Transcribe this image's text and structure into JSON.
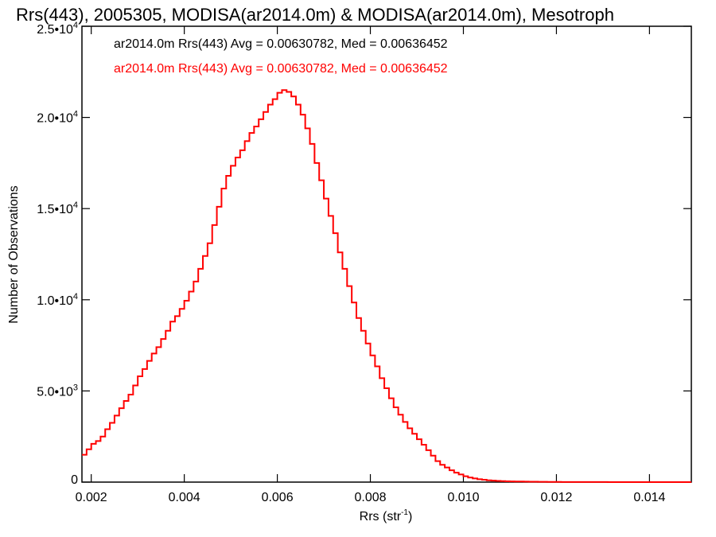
{
  "chart_data": {
    "type": "step-histogram",
    "title": "Rrs(443), 2005305, MODISA(ar2014.0m) & MODISA(ar2014.0m), Mesotroph",
    "xlabel": "Rrs (str",
    "xlabel_sup": "-1",
    "xlabel_suffix": ")",
    "ylabel": "Number of Observations",
    "xlim": [
      0.0018,
      0.0149
    ],
    "ylim": [
      0,
      25000
    ],
    "x_ticks": [
      0.002,
      0.004,
      0.006,
      0.008,
      0.01,
      0.012,
      0.014
    ],
    "x_tick_labels": [
      "0.002",
      "0.004",
      "0.006",
      "0.008",
      "0.010",
      "0.012",
      "0.014"
    ],
    "y_ticks": [
      {
        "value": 0,
        "mantissa": "0",
        "exp": ""
      },
      {
        "value": 5000,
        "mantissa": "5.0•10",
        "exp": "3"
      },
      {
        "value": 10000,
        "mantissa": "1.0•10",
        "exp": "4"
      },
      {
        "value": 15000,
        "mantissa": "1.5•10",
        "exp": "4"
      },
      {
        "value": 20000,
        "mantissa": "2.0•10",
        "exp": "4"
      },
      {
        "value": 25000,
        "mantissa": "2.5•10",
        "exp": "4"
      }
    ],
    "legend": [
      {
        "text": "ar2014.0m Rrs(443) Avg = 0.00630782, Med = 0.00636452",
        "color": "#000000"
      },
      {
        "text": "ar2014.0m Rrs(443) Avg = 0.00630782, Med = 0.00636452",
        "color": "#ff0000"
      }
    ],
    "legend_position": "top-left",
    "series": [
      {
        "color": "#ff0000",
        "x": [
          0.0018,
          0.0019,
          0.002,
          0.0021,
          0.0022,
          0.0023,
          0.0024,
          0.0025,
          0.0026,
          0.0027,
          0.0028,
          0.0029,
          0.003,
          0.0031,
          0.0032,
          0.0033,
          0.0034,
          0.0035,
          0.0036,
          0.0037,
          0.0038,
          0.0039,
          0.004,
          0.0041,
          0.0042,
          0.0043,
          0.0044,
          0.0045,
          0.0046,
          0.0047,
          0.0048,
          0.0049,
          0.005,
          0.0051,
          0.0052,
          0.0053,
          0.0054,
          0.0055,
          0.0056,
          0.0057,
          0.0058,
          0.0059,
          0.006,
          0.0061,
          0.0062,
          0.0063,
          0.0064,
          0.0065,
          0.0066,
          0.0067,
          0.0068,
          0.0069,
          0.007,
          0.0071,
          0.0072,
          0.0073,
          0.0074,
          0.0075,
          0.0076,
          0.0077,
          0.0078,
          0.0079,
          0.008,
          0.0081,
          0.0082,
          0.0083,
          0.0084,
          0.0085,
          0.0086,
          0.0087,
          0.0088,
          0.0089,
          0.009,
          0.0091,
          0.0092,
          0.0093,
          0.0094,
          0.0095,
          0.0096,
          0.0097,
          0.0098,
          0.0099,
          0.01,
          0.0101,
          0.0102,
          0.0103,
          0.0104,
          0.0105,
          0.0106,
          0.0107,
          0.0108,
          0.0109,
          0.011,
          0.0111,
          0.0112,
          0.0113,
          0.0114,
          0.0115,
          0.0116,
          0.0117,
          0.0118,
          0.0119,
          0.012,
          0.0121,
          0.0122,
          0.0123,
          0.0124,
          0.0125,
          0.0126,
          0.0127,
          0.0128,
          0.0129,
          0.013,
          0.0131,
          0.0132,
          0.0133,
          0.0134,
          0.0135,
          0.0136,
          0.0137,
          0.0138,
          0.0139,
          0.014,
          0.0141,
          0.0142,
          0.0143,
          0.0144,
          0.0145,
          0.0146,
          0.0147,
          0.0148
        ],
        "values": [
          1500,
          1800,
          2100,
          2250,
          2500,
          2900,
          3250,
          3650,
          4050,
          4450,
          4800,
          5300,
          5800,
          6200,
          6650,
          7050,
          7400,
          7850,
          8300,
          8800,
          9100,
          9500,
          9950,
          10450,
          11000,
          11700,
          12400,
          13100,
          14100,
          15100,
          16100,
          16800,
          17350,
          17800,
          18200,
          18700,
          19150,
          19500,
          19900,
          20300,
          20700,
          21000,
          21350,
          21500,
          21400,
          21150,
          20700,
          20150,
          19400,
          18550,
          17500,
          16550,
          15550,
          14600,
          13650,
          12600,
          11700,
          10750,
          9850,
          9000,
          8300,
          7600,
          6950,
          6350,
          5700,
          5150,
          4600,
          4100,
          3700,
          3300,
          2950,
          2650,
          2350,
          2050,
          1750,
          1450,
          1150,
          950,
          800,
          650,
          520,
          420,
          320,
          250,
          200,
          160,
          130,
          100,
          80,
          65,
          55,
          45,
          40,
          35,
          30,
          25,
          22,
          20,
          18,
          15,
          12,
          10,
          10,
          8,
          8,
          6,
          5,
          5,
          4,
          4,
          3,
          3,
          3,
          2,
          2,
          2,
          2,
          1,
          1,
          1,
          1,
          1,
          1,
          1,
          1,
          1,
          0,
          0,
          0,
          0,
          0
        ]
      }
    ]
  }
}
